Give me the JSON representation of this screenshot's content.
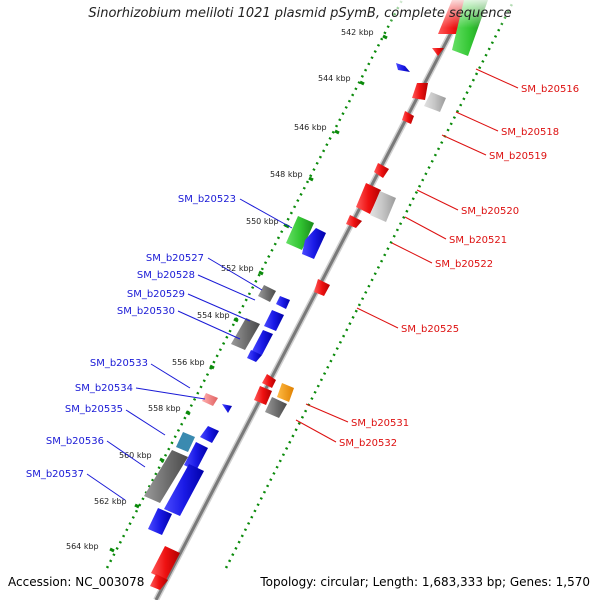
{
  "title": "Sinorhizobium meliloti 1021 plasmid pSymB, complete sequence",
  "footer": {
    "accession": "Accession: NC_003078",
    "summary": "Topology: circular; Length: 1,683,333 bp; Genes: 1,570"
  },
  "colors": {
    "forward_strand_label": "#1a1ad6",
    "reverse_strand_label": "#dd1111",
    "backbone": "#8a8a8a",
    "ring_dots": "#0a8a0a",
    "feature_red": "#ee1111",
    "feature_blue": "#1a1ae6",
    "feature_green": "#33c633",
    "feature_gray": "#707070",
    "feature_lightgray": "#c4c4c4",
    "feature_orange": "#ff9900",
    "feature_pink": "#f08080",
    "feature_teal": "#3a8ab0"
  },
  "kbp_ticks": [
    "542 kbp",
    "544 kbp",
    "546 kbp",
    "548 kbp",
    "550 kbp",
    "552 kbp",
    "554 kbp",
    "556 kbp",
    "558 kbp",
    "560 kbp",
    "562 kbp",
    "564 kbp"
  ],
  "forward_labels": [
    "SM_b20523",
    "SM_b20527",
    "SM_b20528",
    "SM_b20529",
    "SM_b20530",
    "SM_b20533",
    "SM_b20534",
    "SM_b20535",
    "SM_b20536",
    "SM_b20537"
  ],
  "reverse_labels": [
    "SM_b20516",
    "SM_b20518",
    "SM_b20519",
    "SM_b20520",
    "SM_b20521",
    "SM_b20522",
    "SM_b20525",
    "SM_b20531",
    "SM_b20532"
  ]
}
